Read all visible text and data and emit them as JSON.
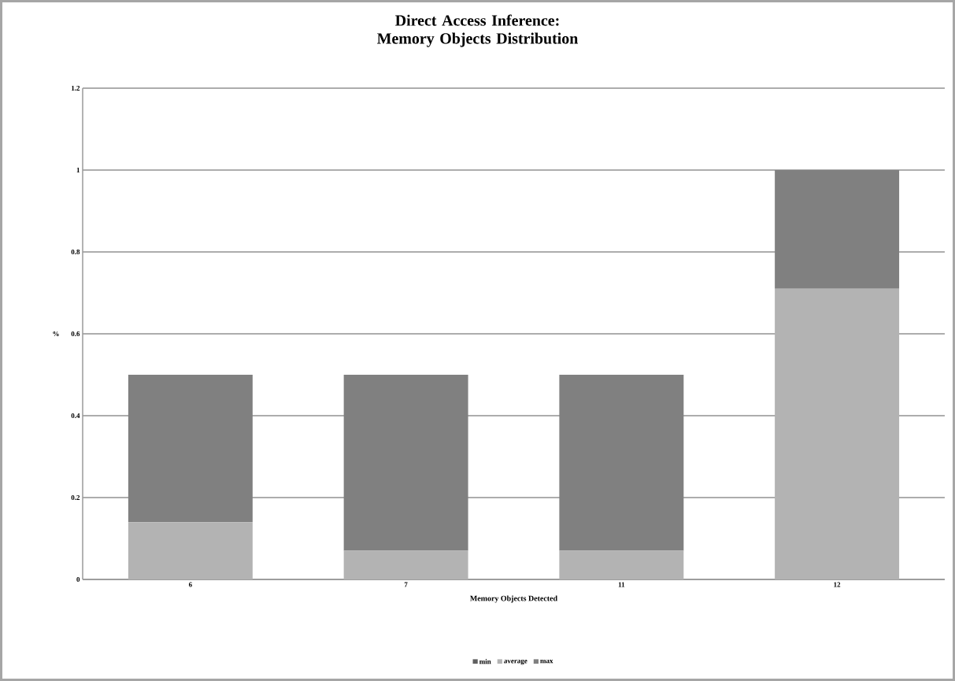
{
  "chart_data": {
    "type": "bar",
    "title": "Direct Access Inference:\nMemory Objects Distribution",
    "xlabel": "Memory Objects Detected",
    "ylabel": "%",
    "categories": [
      "6",
      "7",
      "11",
      "12"
    ],
    "stacked": true,
    "series": [
      {
        "name": "min",
        "color": "#606060",
        "values": [
          0,
          0,
          0,
          0
        ]
      },
      {
        "name": "average",
        "color": "#b3b3b3",
        "values": [
          0.14,
          0.07,
          0.07,
          0.71
        ]
      },
      {
        "name": "max",
        "color": "#808080",
        "values": [
          0.36,
          0.43,
          0.43,
          0.29
        ]
      }
    ],
    "ylim": [
      0,
      1.2
    ],
    "yticks": [
      0,
      0.2,
      0.4,
      0.6,
      0.8,
      1,
      1.2
    ],
    "grid": "y",
    "legend": "bottom"
  }
}
